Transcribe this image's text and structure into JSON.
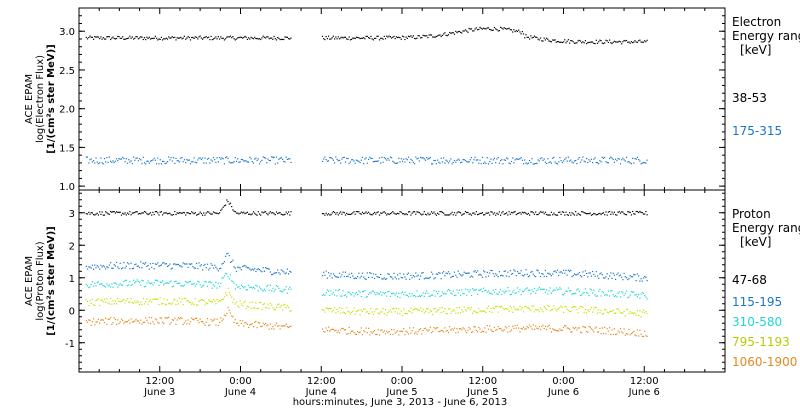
{
  "chart_data": [
    {
      "type": "scatter",
      "ylabel": [
        "ACE EPAM",
        "log(Electron Flux)",
        "[1/(cm²s ster MeV)]"
      ],
      "ylim": [
        0.95,
        3.3
      ],
      "yticks": [
        "1.0",
        "1.5",
        "2.0",
        "2.5",
        "3.0"
      ],
      "legend_title": [
        "Electron",
        "Energy ranges",
        "[keV]"
      ],
      "series": [
        {
          "name": "38-53",
          "color": "#000000",
          "level": 2.92
        },
        {
          "name": "175-315",
          "color": "#1a74c9",
          "level": 1.34
        }
      ]
    },
    {
      "type": "scatter",
      "ylabel": [
        "ACE EPAM",
        "log(Proton Flux)",
        "[1/(cm²s ster MeV)]"
      ],
      "ylim": [
        -1.9,
        3.7
      ],
      "yticks": [
        "-1",
        "0",
        "1",
        "2",
        "3"
      ],
      "legend_title": [
        "Proton",
        "Energy ranges",
        "[keV]"
      ],
      "series": [
        {
          "name": "47-68",
          "color": "#000000",
          "level": 3.0
        },
        {
          "name": "115-195",
          "color": "#1a74c9",
          "level": 1.35
        },
        {
          "name": "310-580",
          "color": "#1fd6d6",
          "level": 0.8
        },
        {
          "name": "795-1193",
          "color": "#c8e000",
          "level": 0.25
        },
        {
          "name": "1060-1900",
          "color": "#e08a1e",
          "level": -0.35
        }
      ]
    }
  ],
  "x_axis": {
    "range_hours": [
      0,
      96
    ],
    "data_gap_hours": [
      31.5,
      36.0
    ],
    "data_end_hours": 84.5,
    "ticks": [
      {
        "time": "12:00",
        "date": "June 3",
        "hour": 12
      },
      {
        "time": "0:00",
        "date": "June 4",
        "hour": 24
      },
      {
        "time": "12:00",
        "date": "June 4",
        "hour": 36
      },
      {
        "time": "0:00",
        "date": "June 5",
        "hour": 48
      },
      {
        "time": "12:00",
        "date": "June 5",
        "hour": 60
      },
      {
        "time": "0:00",
        "date": "June 6",
        "hour": 72
      },
      {
        "time": "12:00",
        "date": "June 6",
        "hour": 84
      }
    ],
    "label": "hours:minutes, June  3, 2013 - June  6, 2013"
  }
}
